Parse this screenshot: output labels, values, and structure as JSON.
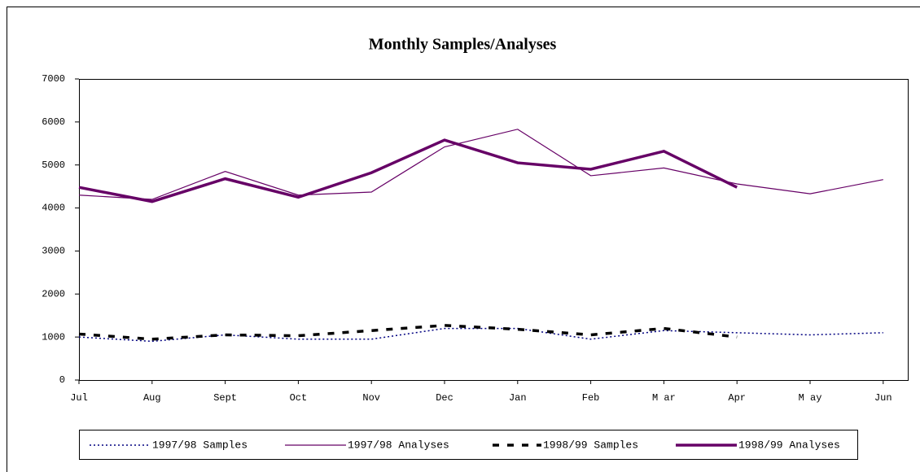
{
  "chart_data": {
    "type": "line",
    "title": "Monthly Samples/Analyses",
    "categories": [
      "Jul",
      "Aug",
      "Sept",
      "Oct",
      "Nov",
      "Dec",
      "Jan",
      "Feb",
      "M ar",
      "Apr",
      "M ay",
      "Jun"
    ],
    "series": [
      {
        "name": "1997/98 Samples",
        "color": "#000080",
        "style": "dotted",
        "values": [
          1000,
          900,
          1050,
          950,
          950,
          1200,
          1200,
          950,
          1150,
          1100,
          1050,
          1100
        ]
      },
      {
        "name": "1997/98 Analyses",
        "color": "#660066",
        "style": "solid",
        "values": [
          4300,
          4200,
          4850,
          4300,
          4370,
          5420,
          5830,
          4750,
          4930,
          4560,
          4330,
          4660
        ]
      },
      {
        "name": "1998/99 Samples",
        "color": "#000000",
        "style": "dashed",
        "values": [
          1070,
          950,
          1050,
          1030,
          1150,
          1270,
          1180,
          1050,
          1200,
          1000,
          null,
          null
        ]
      },
      {
        "name": "1998/99 Analyses",
        "color": "#660066",
        "style": "thick",
        "values": [
          4480,
          4150,
          4680,
          4250,
          4820,
          5580,
          5050,
          4900,
          5320,
          4480,
          null,
          null
        ]
      }
    ],
    "ylim": [
      0,
      7000
    ],
    "yticks": [
      0,
      1000,
      2000,
      3000,
      4000,
      5000,
      6000,
      7000
    ],
    "legend": "bottom"
  }
}
